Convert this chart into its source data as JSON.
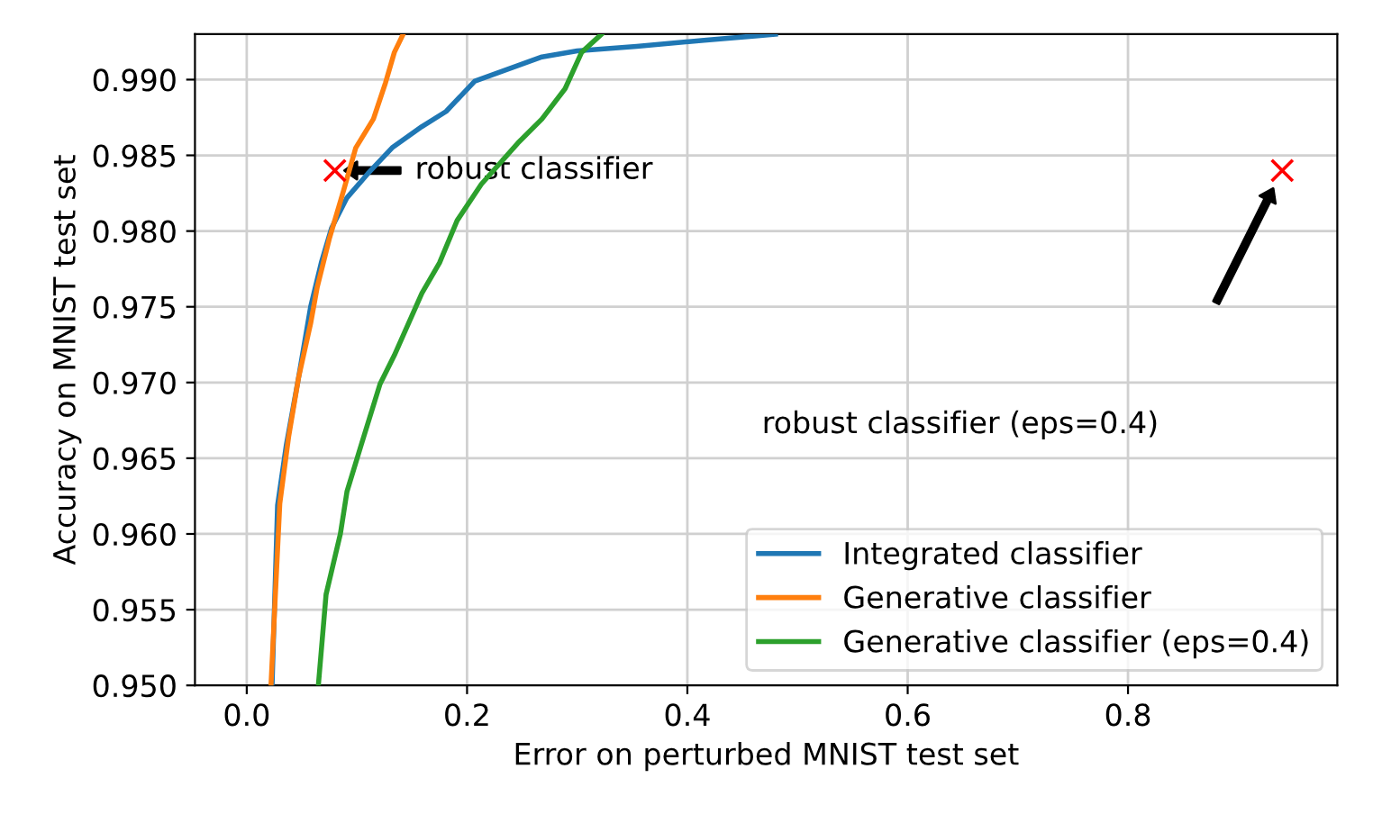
{
  "chart_data": {
    "type": "line",
    "xlabel": "Error on perturbed MNIST test set",
    "ylabel": "Accuracy on MNIST test set",
    "xlim": [
      -0.047,
      0.99
    ],
    "ylim": [
      0.95,
      0.993
    ],
    "xticks": [
      {
        "value": 0,
        "label": "0.0"
      },
      {
        "value": 0.2,
        "label": "0.2"
      },
      {
        "value": 0.4,
        "label": "0.4"
      },
      {
        "value": 0.6,
        "label": "0.6"
      },
      {
        "value": 0.8,
        "label": "0.8"
      }
    ],
    "yticks": [
      {
        "value": 0.95,
        "label": "0.950"
      },
      {
        "value": 0.955,
        "label": "0.955"
      },
      {
        "value": 0.96,
        "label": "0.960"
      },
      {
        "value": 0.965,
        "label": "0.965"
      },
      {
        "value": 0.97,
        "label": "0.970"
      },
      {
        "value": 0.975,
        "label": "0.975"
      },
      {
        "value": 0.98,
        "label": "0.980"
      },
      {
        "value": 0.985,
        "label": "0.985"
      },
      {
        "value": 0.99,
        "label": "0.990"
      }
    ],
    "grid": true,
    "legend": "bottom right",
    "line_style": "solid",
    "marker": "none",
    "series": [
      {
        "name": "Integrated classifier",
        "color": "#1f77b4",
        "x": [
          0.023,
          0.028,
          0.036,
          0.047,
          0.058,
          0.068,
          0.077,
          0.091,
          0.11,
          0.132,
          0.159,
          0.181,
          0.207,
          0.268,
          0.3,
          0.354,
          0.415,
          0.464,
          0.48
        ],
        "values": [
          0.95,
          0.9619,
          0.9659,
          0.9703,
          0.975,
          0.978,
          0.9802,
          0.9822,
          0.9838,
          0.9855,
          0.9869,
          0.9879,
          0.9899,
          0.9915,
          0.9919,
          0.9922,
          0.9926,
          0.9929,
          0.993
        ]
      },
      {
        "name": "Generative classifier",
        "color": "#ff7f0e",
        "x": [
          0.022,
          0.03,
          0.038,
          0.047,
          0.058,
          0.064,
          0.075,
          0.088,
          0.099,
          0.115,
          0.126,
          0.134,
          0.142
        ],
        "values": [
          0.95,
          0.962,
          0.9664,
          0.9703,
          0.9739,
          0.9763,
          0.9795,
          0.9827,
          0.9855,
          0.9874,
          0.9898,
          0.9918,
          0.993
        ]
      },
      {
        "name": "Generative classifier (eps=0.4)",
        "color": "#2ca02c",
        "x": [
          0.065,
          0.072,
          0.085,
          0.091,
          0.104,
          0.121,
          0.134,
          0.159,
          0.175,
          0.191,
          0.213,
          0.246,
          0.268,
          0.289,
          0.304,
          0.322
        ],
        "values": [
          0.95,
          0.956,
          0.96,
          0.9628,
          0.9659,
          0.9699,
          0.9718,
          0.9759,
          0.9779,
          0.9807,
          0.9831,
          0.9858,
          0.9874,
          0.9894,
          0.9918,
          0.993
        ]
      },
      {
        "type": "scatter",
        "marker": "cross",
        "color": "#ff0000",
        "x": [
          0.08,
          0.94
        ],
        "values": [
          0.984,
          0.984
        ]
      }
    ],
    "annotations": [
      {
        "text": "robust classifier",
        "x": 0.08,
        "y": 0.984
      },
      "robust classifier (eps=0.4)"
    ]
  }
}
